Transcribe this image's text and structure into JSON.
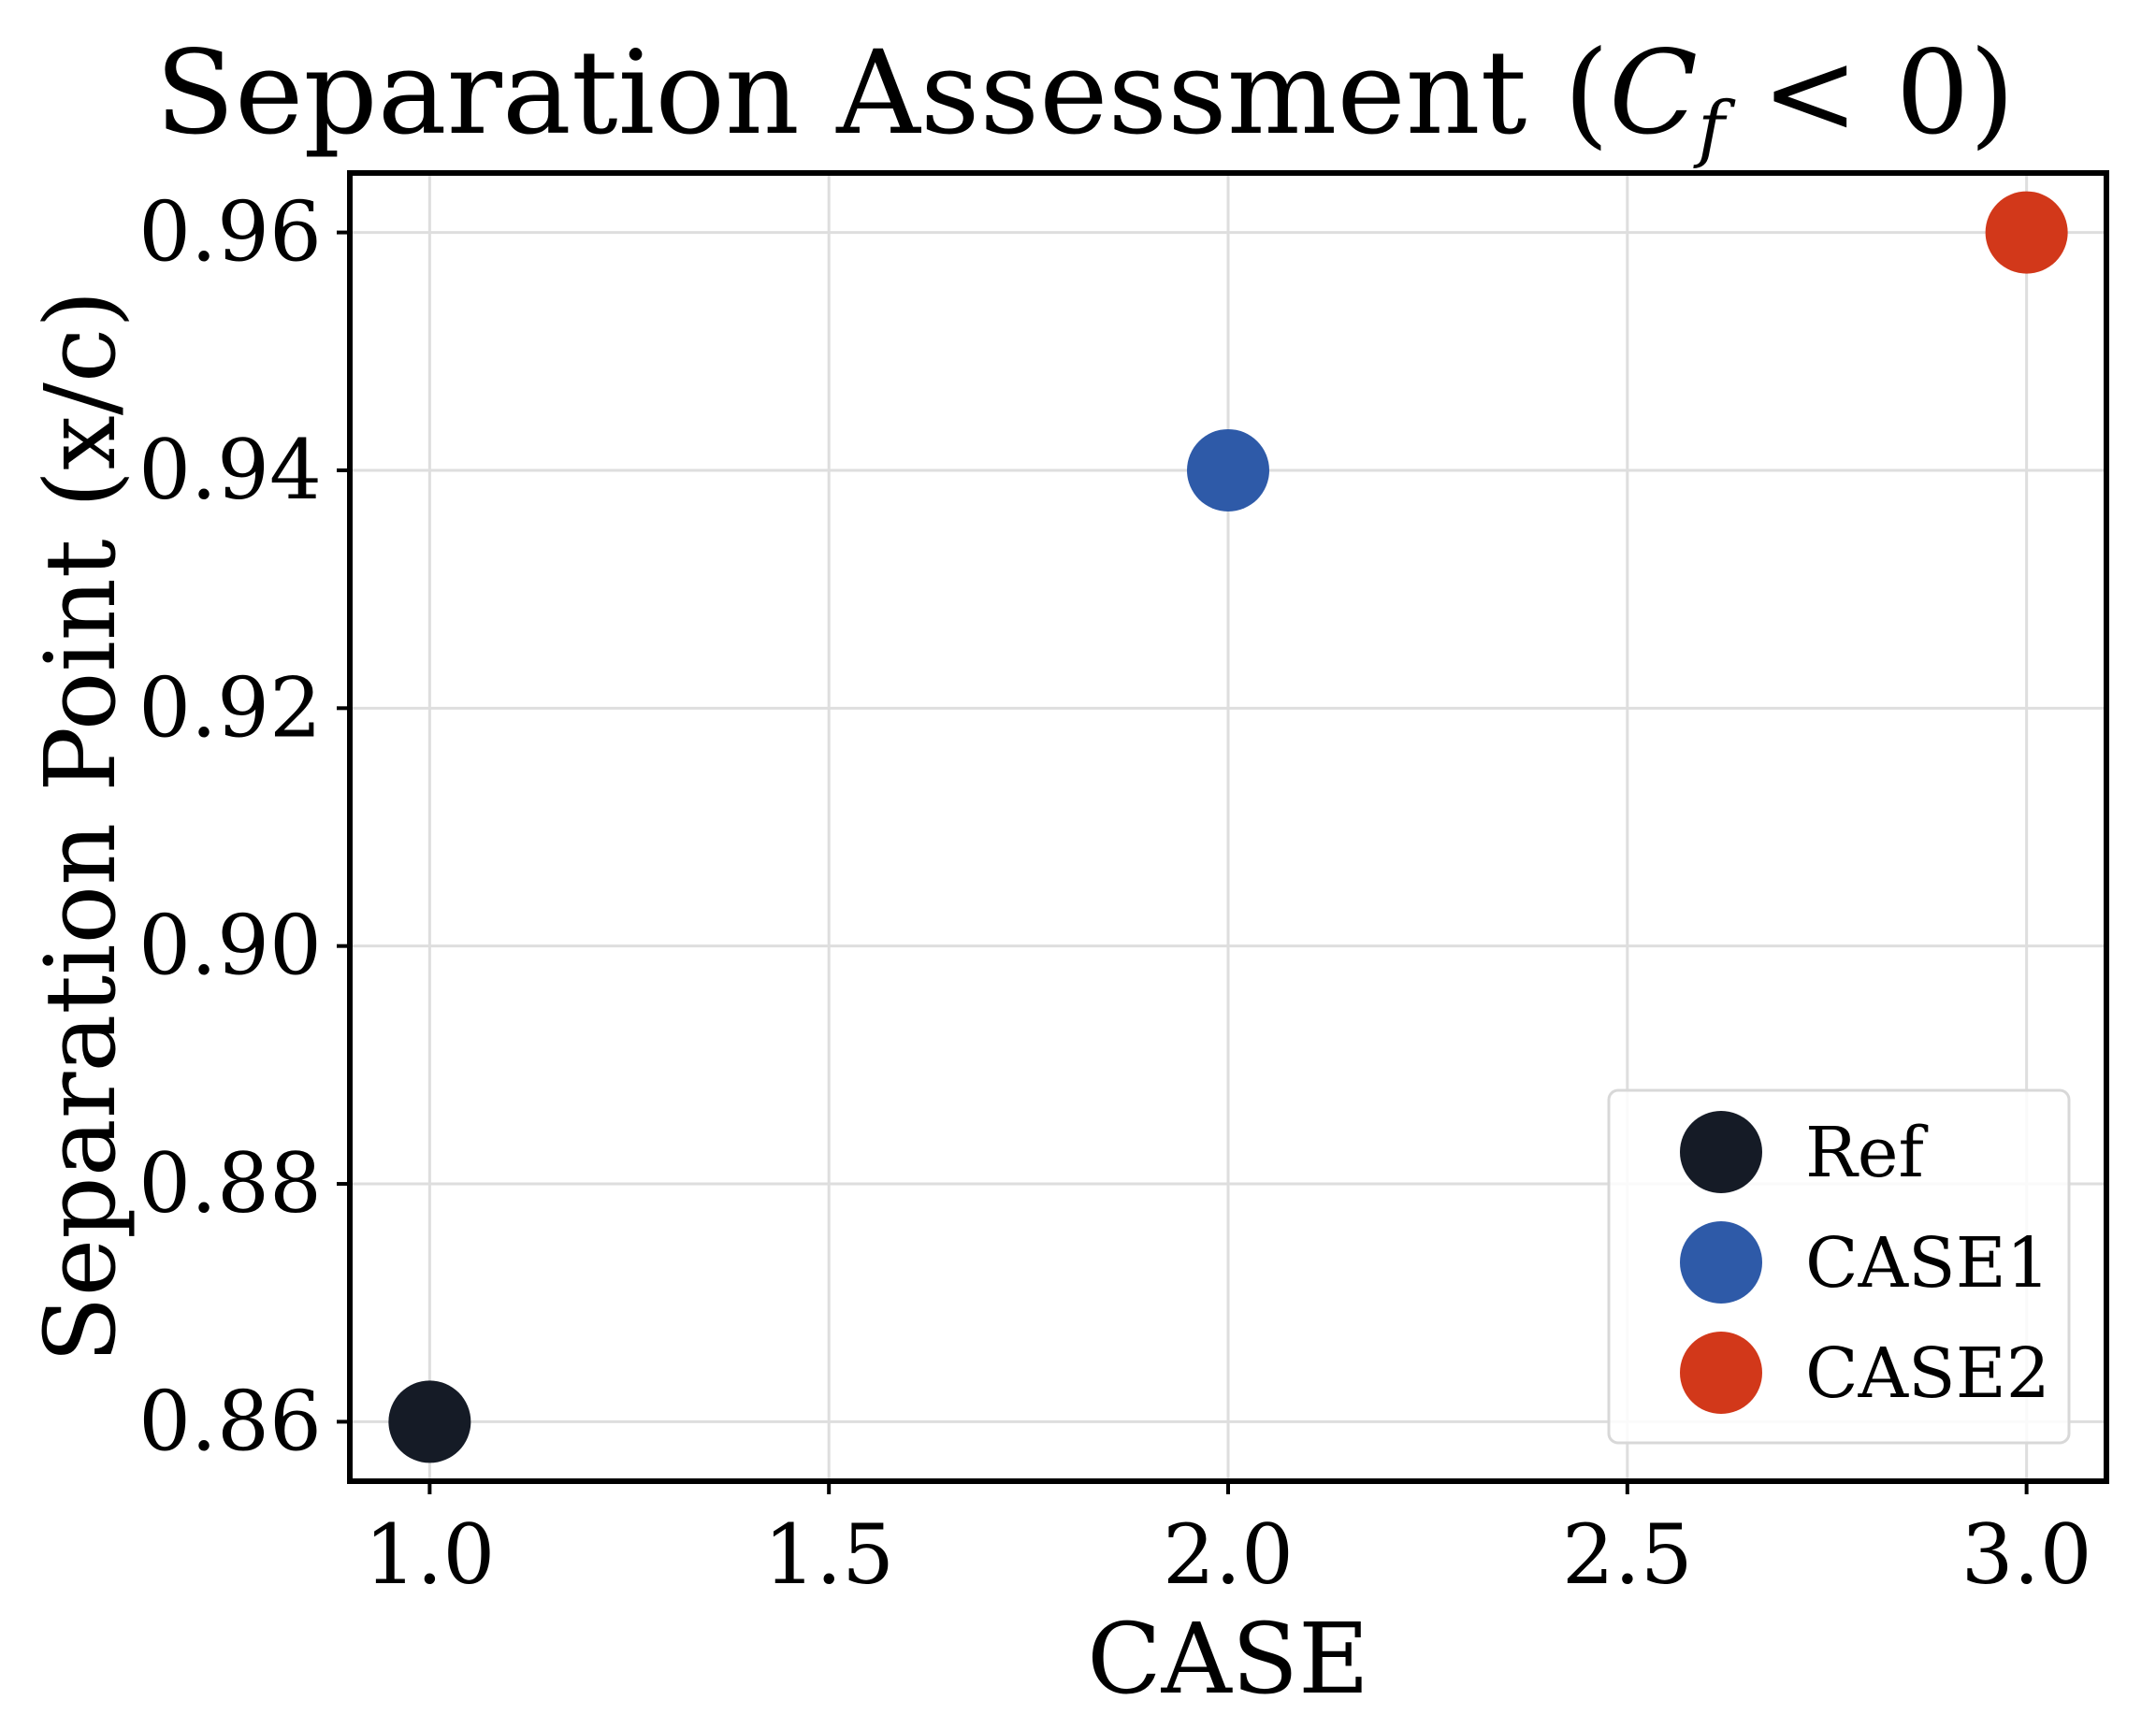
{
  "chart_data": {
    "type": "scatter",
    "title": "Separation Assessment (C_f < 0)",
    "title_parts": {
      "prefix": "Separation Assessment (",
      "var": "C",
      "sub": "f",
      "suffix": " < 0)"
    },
    "xlabel": "CASE",
    "ylabel": "Separation Point (x/c)",
    "xlim": [
      0.9,
      3.1
    ],
    "ylim": [
      0.855,
      0.965
    ],
    "xticks": [
      1.0,
      1.5,
      2.0,
      2.5,
      3.0
    ],
    "xtick_labels": [
      "1.0",
      "1.5",
      "2.0",
      "2.5",
      "3.0"
    ],
    "yticks": [
      0.86,
      0.88,
      0.9,
      0.92,
      0.94,
      0.96
    ],
    "ytick_labels": [
      "0.86",
      "0.88",
      "0.90",
      "0.92",
      "0.94",
      "0.96"
    ],
    "grid": true,
    "legend_position": "bottom-right",
    "series": [
      {
        "name": "Ref",
        "x": 1.0,
        "y": 0.86,
        "color": "#151b26"
      },
      {
        "name": "CASE1",
        "x": 2.0,
        "y": 0.94,
        "color": "#2e5aa8"
      },
      {
        "name": "CASE2",
        "x": 3.0,
        "y": 0.96,
        "color": "#d2381a"
      }
    ]
  }
}
